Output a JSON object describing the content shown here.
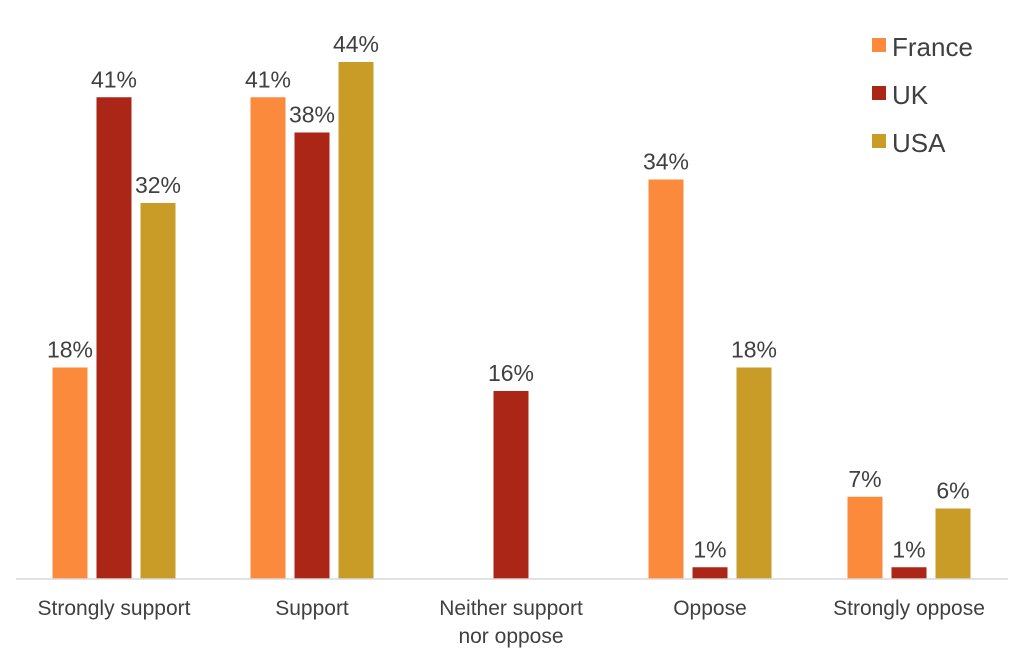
{
  "chart_data": {
    "type": "bar",
    "title": "",
    "xlabel": "",
    "ylabel": "",
    "ylim": [
      0,
      45
    ],
    "grid": false,
    "legend_position": "top-right",
    "categories": [
      [
        "Strongly support"
      ],
      [
        "Support"
      ],
      [
        "Neither support",
        "nor oppose"
      ],
      [
        "Oppose"
      ],
      [
        "Strongly oppose"
      ]
    ],
    "series": [
      {
        "name": "France",
        "color": "#fb8a3c",
        "values": [
          18,
          41,
          null,
          34,
          7
        ],
        "labels": [
          "18%",
          "41%",
          "",
          "34%",
          "7%"
        ]
      },
      {
        "name": "UK",
        "color": "#ab2616",
        "values": [
          41,
          38,
          16,
          1,
          1
        ],
        "labels": [
          "41%",
          "38%",
          "16%",
          "1%",
          "1%"
        ]
      },
      {
        "name": "USA",
        "color": "#c99b27",
        "values": [
          32,
          44,
          null,
          18,
          6
        ],
        "labels": [
          "32%",
          "44%",
          "",
          "18%",
          "6%"
        ]
      }
    ]
  }
}
